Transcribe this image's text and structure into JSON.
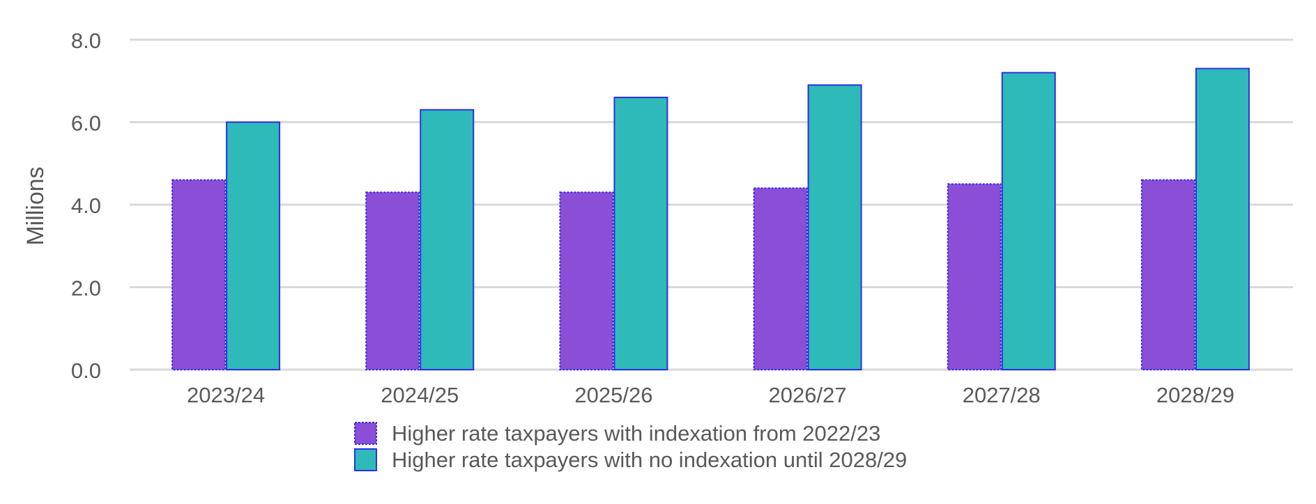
{
  "chart_data": {
    "type": "bar",
    "title": "",
    "xlabel": "",
    "ylabel": "Millions",
    "ylim": [
      0,
      8
    ],
    "yticks": [
      "0.0",
      "2.0",
      "4.0",
      "6.0",
      "8.0"
    ],
    "grid": true,
    "legend_position": "bottom",
    "categories": [
      "2023/24",
      "2024/25",
      "2025/26",
      "2026/27",
      "2027/28",
      "2028/29"
    ],
    "series": [
      {
        "name": "Higher rate taxpayers with indexation from 2022/23",
        "values": [
          4.6,
          4.3,
          4.3,
          4.4,
          4.5,
          4.6
        ],
        "color": "#8a4fd6",
        "border_color": "#3b2be0"
      },
      {
        "name": "Higher rate taxpayers with no indexation until 2028/29",
        "values": [
          6.0,
          6.3,
          6.6,
          6.9,
          7.2,
          7.3
        ],
        "color": "#2ebab8",
        "border_color": "#2e2ee6"
      }
    ]
  }
}
